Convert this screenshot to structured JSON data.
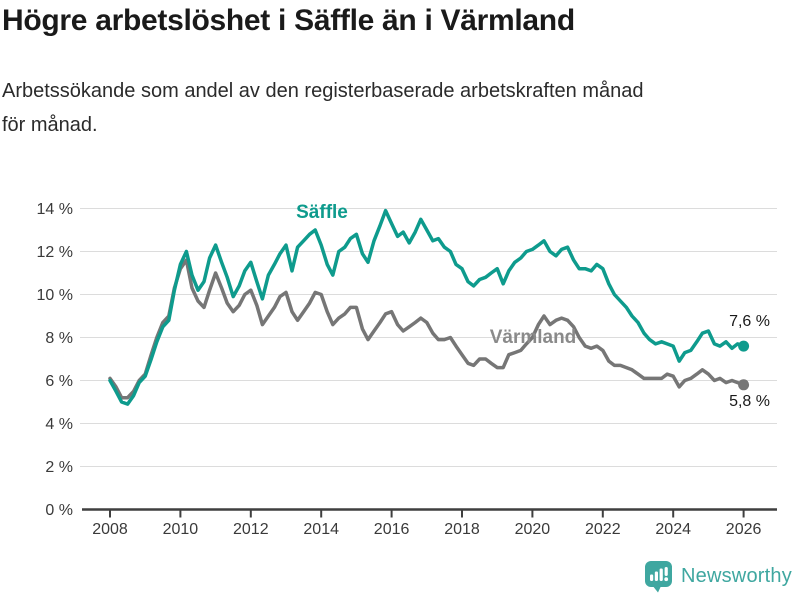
{
  "header": {
    "title": "Högre arbetslöshet i Säffle än i Värmland",
    "subtitle_lines": [
      "Arbetssökande som andel av den registerbaserade arbetskraften månad",
      "för månad."
    ]
  },
  "chart_data": {
    "type": "line",
    "xlabel": "",
    "ylabel": "",
    "ylim": [
      0,
      14
    ],
    "xlim": [
      2008,
      2026.2
    ],
    "grid": "horizontal",
    "yticks": [
      {
        "v": 0,
        "label": "0 %"
      },
      {
        "v": 2,
        "label": "2 %"
      },
      {
        "v": 4,
        "label": "4 %"
      },
      {
        "v": 6,
        "label": "6 %"
      },
      {
        "v": 8,
        "label": "8 %"
      },
      {
        "v": 10,
        "label": "10 %"
      },
      {
        "v": 12,
        "label": "12 %"
      },
      {
        "v": 14,
        "label": "14 %"
      }
    ],
    "xticks": [
      {
        "v": 2008,
        "label": "2008"
      },
      {
        "v": 2010,
        "label": "2010"
      },
      {
        "v": 2012,
        "label": "2012"
      },
      {
        "v": 2014,
        "label": "2014"
      },
      {
        "v": 2016,
        "label": "2016"
      },
      {
        "v": 2018,
        "label": "2018"
      },
      {
        "v": 2020,
        "label": "2020"
      },
      {
        "v": 2022,
        "label": "2022"
      },
      {
        "v": 2024,
        "label": "2024"
      },
      {
        "v": 2026,
        "label": "2026"
      }
    ],
    "x": [
      2008.0,
      2008.17,
      2008.33,
      2008.5,
      2008.67,
      2008.83,
      2009.0,
      2009.17,
      2009.33,
      2009.5,
      2009.67,
      2009.83,
      2010.0,
      2010.17,
      2010.33,
      2010.5,
      2010.67,
      2010.83,
      2011.0,
      2011.17,
      2011.33,
      2011.5,
      2011.67,
      2011.83,
      2012.0,
      2012.17,
      2012.33,
      2012.5,
      2012.67,
      2012.83,
      2013.0,
      2013.17,
      2013.33,
      2013.5,
      2013.67,
      2013.83,
      2014.0,
      2014.17,
      2014.33,
      2014.5,
      2014.67,
      2014.83,
      2015.0,
      2015.17,
      2015.33,
      2015.5,
      2015.67,
      2015.83,
      2016.0,
      2016.17,
      2016.33,
      2016.5,
      2016.67,
      2016.83,
      2017.0,
      2017.17,
      2017.33,
      2017.5,
      2017.67,
      2017.83,
      2018.0,
      2018.17,
      2018.33,
      2018.5,
      2018.67,
      2018.83,
      2019.0,
      2019.17,
      2019.33,
      2019.5,
      2019.67,
      2019.83,
      2020.0,
      2020.17,
      2020.33,
      2020.5,
      2020.67,
      2020.83,
      2021.0,
      2021.17,
      2021.33,
      2021.5,
      2021.67,
      2021.83,
      2022.0,
      2022.17,
      2022.33,
      2022.5,
      2022.67,
      2022.83,
      2023.0,
      2023.17,
      2023.33,
      2023.5,
      2023.67,
      2023.83,
      2024.0,
      2024.17,
      2024.33,
      2024.5,
      2024.67,
      2024.83,
      2025.0,
      2025.17,
      2025.33,
      2025.5,
      2025.67,
      2025.83,
      2026.0
    ],
    "series": [
      {
        "key": "saffle",
        "name": "Säffle",
        "color": "#0e9b8d",
        "end_label": "7,6 %",
        "end_value": 7.6,
        "values": [
          6.0,
          5.5,
          5.0,
          4.9,
          5.3,
          5.9,
          6.2,
          7.0,
          7.8,
          8.5,
          8.8,
          10.2,
          11.4,
          12.0,
          10.9,
          10.2,
          10.6,
          11.7,
          12.3,
          11.5,
          10.8,
          9.9,
          10.4,
          11.1,
          11.5,
          10.6,
          9.8,
          10.9,
          11.4,
          11.9,
          12.3,
          11.1,
          12.2,
          12.5,
          12.8,
          13.0,
          12.3,
          11.4,
          10.9,
          12.0,
          12.2,
          12.6,
          12.8,
          11.9,
          11.5,
          12.5,
          13.2,
          13.9,
          13.3,
          12.7,
          12.9,
          12.4,
          12.9,
          13.5,
          13.0,
          12.5,
          12.6,
          12.2,
          12.0,
          11.4,
          11.2,
          10.6,
          10.4,
          10.7,
          10.8,
          11.0,
          11.2,
          10.5,
          11.1,
          11.5,
          11.7,
          12.0,
          12.1,
          12.3,
          12.5,
          12.0,
          11.8,
          12.1,
          12.2,
          11.6,
          11.2,
          11.2,
          11.1,
          11.4,
          11.2,
          10.5,
          10.0,
          9.7,
          9.4,
          9.0,
          8.7,
          8.2,
          7.9,
          7.7,
          7.8,
          7.7,
          7.6,
          6.9,
          7.3,
          7.4,
          7.8,
          8.2,
          8.3,
          7.7,
          7.6,
          7.8,
          7.5,
          7.7,
          7.6
        ]
      },
      {
        "key": "varmland",
        "name": "Värmland",
        "color": "#767676",
        "end_label": "5,8 %",
        "end_value": 5.8,
        "values": [
          6.1,
          5.7,
          5.2,
          5.2,
          5.5,
          6.0,
          6.3,
          7.2,
          8.0,
          8.7,
          9.0,
          10.3,
          11.2,
          11.6,
          10.3,
          9.7,
          9.4,
          10.2,
          11.0,
          10.3,
          9.6,
          9.2,
          9.5,
          10.0,
          10.2,
          9.5,
          8.6,
          9.0,
          9.4,
          9.9,
          10.1,
          9.2,
          8.8,
          9.2,
          9.6,
          10.1,
          10.0,
          9.2,
          8.6,
          8.9,
          9.1,
          9.4,
          9.4,
          8.4,
          7.9,
          8.3,
          8.7,
          9.1,
          9.2,
          8.6,
          8.3,
          8.5,
          8.7,
          8.9,
          8.7,
          8.2,
          7.9,
          7.9,
          8.0,
          7.6,
          7.2,
          6.8,
          6.7,
          7.0,
          7.0,
          6.8,
          6.6,
          6.6,
          7.2,
          7.3,
          7.4,
          7.7,
          8.0,
          8.6,
          9.0,
          8.6,
          8.8,
          8.9,
          8.8,
          8.5,
          8.0,
          7.6,
          7.5,
          7.6,
          7.4,
          6.9,
          6.7,
          6.7,
          6.6,
          6.5,
          6.3,
          6.1,
          6.1,
          6.1,
          6.1,
          6.3,
          6.2,
          5.7,
          6.0,
          6.1,
          6.3,
          6.5,
          6.3,
          6.0,
          6.1,
          5.9,
          6.0,
          5.9,
          5.8
        ]
      }
    ]
  },
  "footer": {
    "brand": "Newsworthy",
    "brand_color": "#3fa7a0"
  }
}
